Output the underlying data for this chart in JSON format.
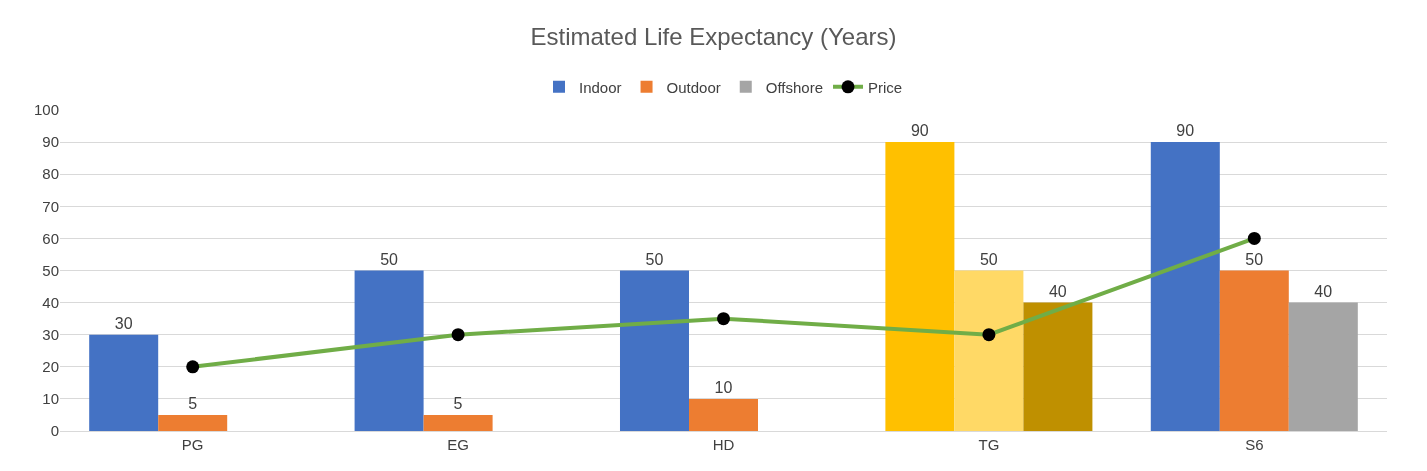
{
  "chart_data": {
    "type": "bar",
    "title": "Estimated Life Expectancy (Years)",
    "categories": [
      "PG",
      "EG",
      "HD",
      "TG",
      "S6"
    ],
    "series": [
      {
        "name": "Indoor",
        "color": "#4472c4",
        "colors": [
          "#4472c4",
          "#4472c4",
          "#4472c4",
          "#ffc000",
          "#4472c4"
        ],
        "values": [
          30,
          50,
          50,
          90,
          90
        ],
        "value_labels": [
          "30",
          "50",
          "50",
          "90",
          "90"
        ]
      },
      {
        "name": "Outdoor",
        "color": "#ed7d31",
        "colors": [
          "#ed7d31",
          "#ed7d31",
          "#ed7d31",
          "#ffd966",
          "#ed7d31"
        ],
        "values": [
          5,
          5,
          10,
          50,
          50
        ],
        "value_labels": [
          "5",
          "5",
          "10",
          "50",
          "50"
        ]
      },
      {
        "name": "Offshore",
        "color": "#a5a5a5",
        "colors": [
          "#a5a5a5",
          "#a5a5a5",
          "#a5a5a5",
          "#bf9000",
          "#a5a5a5"
        ],
        "values": [
          null,
          null,
          null,
          40,
          40
        ],
        "value_labels": [
          null,
          null,
          null,
          "40",
          "40"
        ]
      },
      {
        "name": "Price",
        "type": "line",
        "color": "#70ad47",
        "marker": "circle",
        "values": [
          20,
          30,
          35,
          30,
          60
        ]
      }
    ],
    "ylim": [
      0,
      100
    ],
    "yticks": [
      0,
      10,
      20,
      30,
      40,
      50,
      60,
      70,
      80,
      90,
      100
    ],
    "grid": "y",
    "legend": "top"
  }
}
